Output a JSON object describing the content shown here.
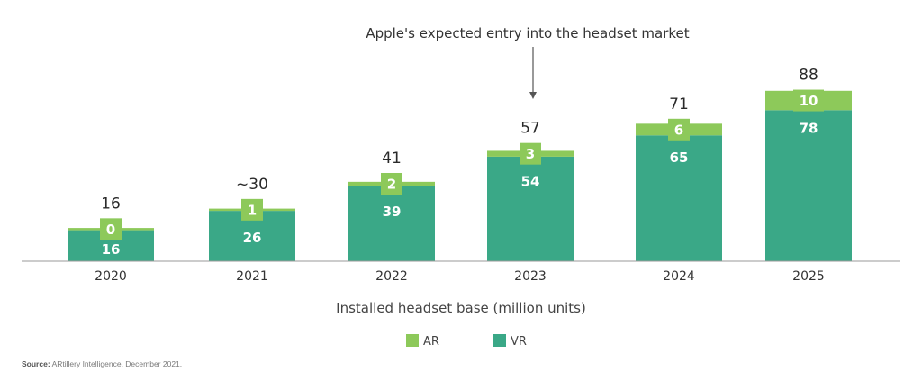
{
  "chart_data": {
    "type": "bar",
    "stacked": true,
    "categories": [
      "2020",
      "2021",
      "2022",
      "2023",
      "2024",
      "2025"
    ],
    "series": [
      {
        "name": "VR",
        "values": [
          16,
          26,
          39,
          54,
          65,
          78
        ],
        "color": "#3aa887"
      },
      {
        "name": "AR",
        "values": [
          0,
          1,
          2,
          3,
          6,
          10
        ],
        "color": "#8dc95a"
      }
    ],
    "totals": [
      "16",
      "~30",
      "41",
      "57",
      "71",
      "88"
    ],
    "xlabel": "Installed headset base (million units)",
    "ylim": [
      0,
      100
    ],
    "grid": false,
    "legend_position": "bottom",
    "annotation": {
      "text": "Apple's expected entry into the headset market",
      "category": "2023"
    }
  },
  "source": {
    "label": "Source:",
    "text": "ARtillery Intelligence, December 2021."
  }
}
